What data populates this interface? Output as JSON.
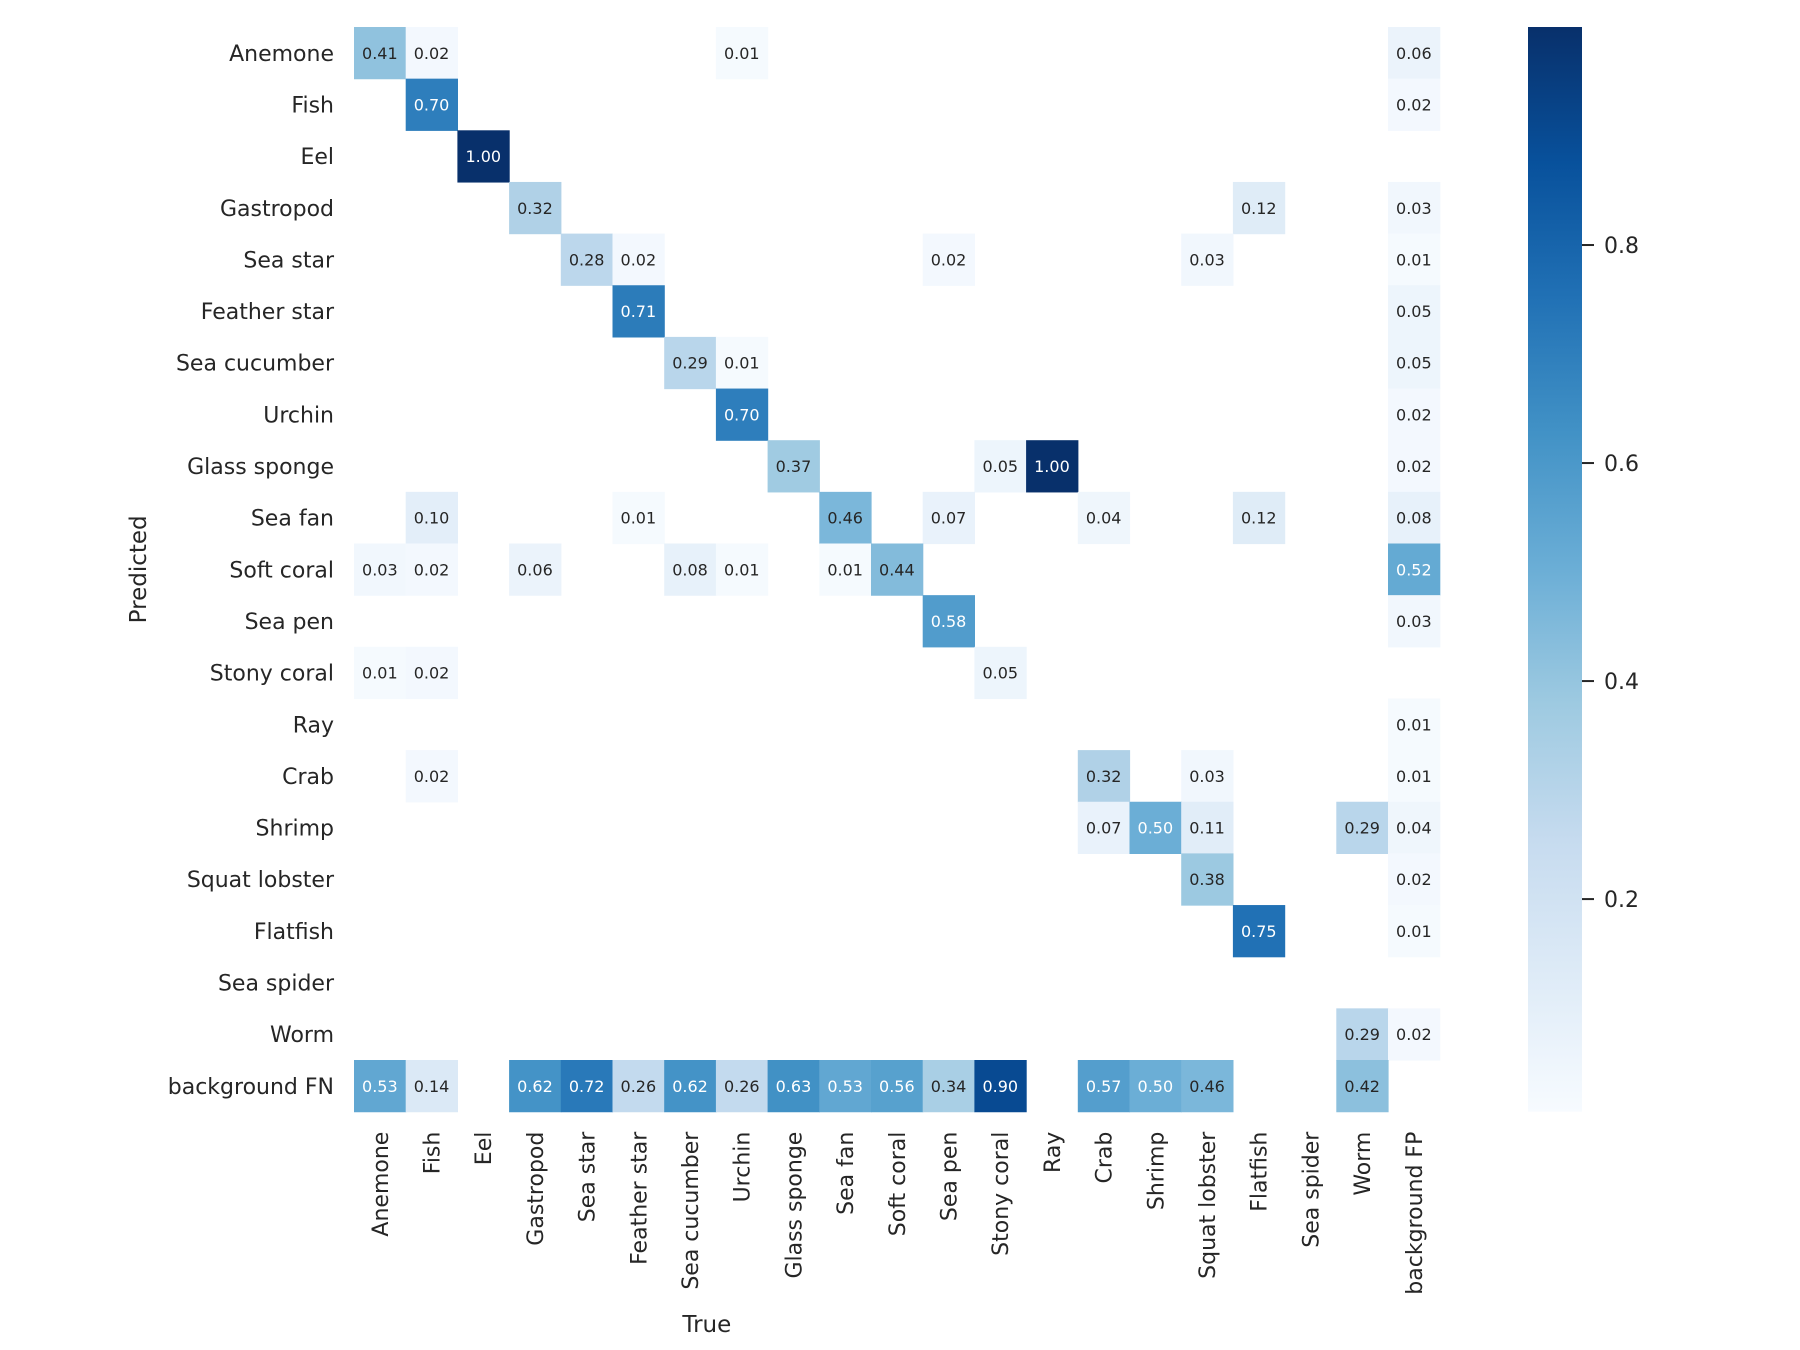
{
  "chart_data": {
    "type": "heatmap",
    "title": "",
    "xlabel": "True",
    "ylabel": "Predicted",
    "x_categories": [
      "Anemone",
      "Fish",
      "Eel",
      "Gastropod",
      "Sea star",
      "Feather star",
      "Sea cucumber",
      "Urchin",
      "Glass sponge",
      "Sea fan",
      "Soft coral",
      "Sea pen",
      "Stony coral",
      "Ray",
      "Crab",
      "Shrimp",
      "Squat lobster",
      "Flatfish",
      "Sea spider",
      "Worm",
      "background FP"
    ],
    "y_categories": [
      "Anemone",
      "Fish",
      "Eel",
      "Gastropod",
      "Sea star",
      "Feather star",
      "Sea cucumber",
      "Urchin",
      "Glass sponge",
      "Sea fan",
      "Soft coral",
      "Sea pen",
      "Stony coral",
      "Ray",
      "Crab",
      "Shrimp",
      "Squat lobster",
      "Flatfish",
      "Sea spider",
      "Worm",
      "background FN"
    ],
    "values": [
      [
        0.41,
        0.02,
        null,
        null,
        null,
        null,
        null,
        0.01,
        null,
        null,
        null,
        null,
        null,
        null,
        null,
        null,
        null,
        null,
        null,
        null,
        0.06
      ],
      [
        null,
        0.7,
        null,
        null,
        null,
        null,
        null,
        null,
        null,
        null,
        null,
        null,
        null,
        null,
        null,
        null,
        null,
        null,
        null,
        null,
        0.02
      ],
      [
        null,
        null,
        1.0,
        null,
        null,
        null,
        null,
        null,
        null,
        null,
        null,
        null,
        null,
        null,
        null,
        null,
        null,
        null,
        null,
        null,
        null
      ],
      [
        null,
        null,
        null,
        0.32,
        null,
        null,
        null,
        null,
        null,
        null,
        null,
        null,
        null,
        null,
        null,
        null,
        null,
        0.12,
        null,
        null,
        0.03
      ],
      [
        null,
        null,
        null,
        null,
        0.28,
        0.02,
        null,
        null,
        null,
        null,
        null,
        0.02,
        null,
        null,
        null,
        null,
        0.03,
        null,
        null,
        null,
        0.01
      ],
      [
        null,
        null,
        null,
        null,
        null,
        0.71,
        null,
        null,
        null,
        null,
        null,
        null,
        null,
        null,
        null,
        null,
        null,
        null,
        null,
        null,
        0.05
      ],
      [
        null,
        null,
        null,
        null,
        null,
        null,
        0.29,
        0.01,
        null,
        null,
        null,
        null,
        null,
        null,
        null,
        null,
        null,
        null,
        null,
        null,
        0.05
      ],
      [
        null,
        null,
        null,
        null,
        null,
        null,
        null,
        0.7,
        null,
        null,
        null,
        null,
        null,
        null,
        null,
        null,
        null,
        null,
        null,
        null,
        0.02
      ],
      [
        null,
        null,
        null,
        null,
        null,
        null,
        null,
        null,
        0.37,
        null,
        null,
        null,
        0.05,
        1.0,
        null,
        null,
        null,
        null,
        null,
        null,
        0.02
      ],
      [
        null,
        0.1,
        null,
        null,
        null,
        0.01,
        null,
        null,
        null,
        0.46,
        null,
        0.07,
        null,
        null,
        0.04,
        null,
        null,
        0.12,
        null,
        null,
        0.08
      ],
      [
        0.03,
        0.02,
        null,
        0.06,
        null,
        null,
        0.08,
        0.01,
        null,
        0.01,
        0.44,
        null,
        null,
        null,
        null,
        null,
        null,
        null,
        null,
        null,
        0.52
      ],
      [
        null,
        null,
        null,
        null,
        null,
        null,
        null,
        null,
        null,
        null,
        null,
        0.58,
        null,
        null,
        null,
        null,
        null,
        null,
        null,
        null,
        0.03
      ],
      [
        0.01,
        0.02,
        null,
        null,
        null,
        null,
        null,
        null,
        null,
        null,
        null,
        null,
        0.05,
        null,
        null,
        null,
        null,
        null,
        null,
        null,
        null
      ],
      [
        null,
        null,
        null,
        null,
        null,
        null,
        null,
        null,
        null,
        null,
        null,
        null,
        null,
        null,
        null,
        null,
        null,
        null,
        null,
        null,
        0.01
      ],
      [
        null,
        0.02,
        null,
        null,
        null,
        null,
        null,
        null,
        null,
        null,
        null,
        null,
        null,
        null,
        0.32,
        null,
        0.03,
        null,
        null,
        null,
        0.01
      ],
      [
        null,
        null,
        null,
        null,
        null,
        null,
        null,
        null,
        null,
        null,
        null,
        null,
        null,
        null,
        0.07,
        0.5,
        0.11,
        null,
        null,
        0.29,
        0.04
      ],
      [
        null,
        null,
        null,
        null,
        null,
        null,
        null,
        null,
        null,
        null,
        null,
        null,
        null,
        null,
        null,
        null,
        0.38,
        null,
        null,
        null,
        0.02
      ],
      [
        null,
        null,
        null,
        null,
        null,
        null,
        null,
        null,
        null,
        null,
        null,
        null,
        null,
        null,
        null,
        null,
        null,
        0.75,
        null,
        null,
        0.01
      ],
      [
        null,
        null,
        null,
        null,
        null,
        null,
        null,
        null,
        null,
        null,
        null,
        null,
        null,
        null,
        null,
        null,
        null,
        null,
        null,
        null,
        null
      ],
      [
        null,
        null,
        null,
        null,
        null,
        null,
        null,
        null,
        null,
        null,
        null,
        null,
        null,
        null,
        null,
        null,
        null,
        null,
        null,
        0.29,
        0.02
      ],
      [
        0.53,
        0.14,
        null,
        0.62,
        0.72,
        0.26,
        0.62,
        0.26,
        0.63,
        0.53,
        0.56,
        0.34,
        0.9,
        null,
        0.57,
        0.5,
        0.46,
        null,
        null,
        0.42,
        null
      ]
    ],
    "value_format": "0.00",
    "colormap": "Blues",
    "color_range": [
      0.0,
      1.0
    ],
    "colorbar": {
      "ticks": [
        0.2,
        0.4,
        0.6,
        0.8
      ],
      "tick_labels": [
        "0.2",
        "0.4",
        "0.6",
        "0.8"
      ],
      "placement": "right"
    },
    "grid": false
  },
  "colors": {
    "colormap_stops": [
      "#f7fbff",
      "#deebf7",
      "#c6dbef",
      "#9ecae1",
      "#6baed6",
      "#4292c6",
      "#2171b5",
      "#08519c",
      "#08306b"
    ],
    "text_dark": "#262626",
    "text_light": "#ffffff"
  }
}
